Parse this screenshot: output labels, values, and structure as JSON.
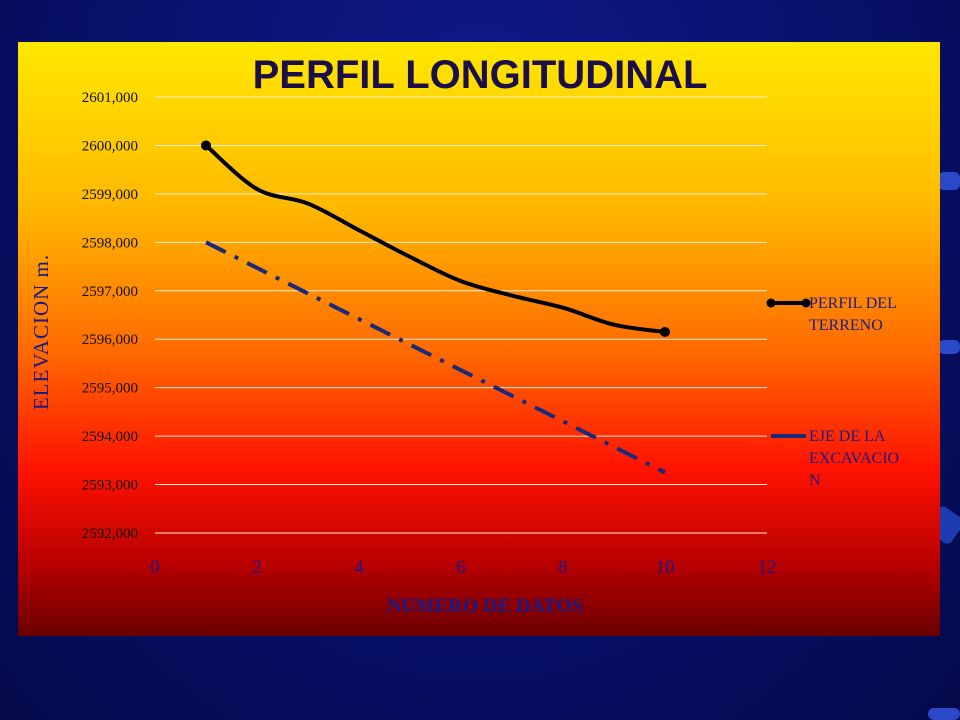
{
  "chart_data": {
    "type": "line",
    "title": "PERFIL LONGITUDINAL",
    "xlabel": "NUMERO DE DATOS",
    "ylabel": "ELEVACION m.",
    "xlim": [
      0,
      12
    ],
    "ylim": [
      2592,
      2601
    ],
    "x_ticks": [
      "0",
      "2",
      "4",
      "6",
      "8",
      "10",
      "12"
    ],
    "y_ticks": [
      "2592,000",
      "2593,000",
      "2594,000",
      "2595,000",
      "2596,000",
      "2597,000",
      "2598,000",
      "2599,000",
      "2600,000",
      "2601,000"
    ],
    "grid": true,
    "legend_position": "right",
    "series": [
      {
        "name": "PERFIL DEL TERRENO",
        "name_lines": [
          "PERFIL DEL",
          "TERRENO"
        ],
        "color": "#000000",
        "style": "solid-with-end-markers",
        "x": [
          1,
          2,
          3,
          4,
          5,
          6,
          7,
          8,
          9,
          10
        ],
        "y": [
          2600.0,
          2599.1,
          2598.8,
          2598.25,
          2597.7,
          2597.2,
          2596.9,
          2596.65,
          2596.3,
          2596.15
        ]
      },
      {
        "name": "EJE DE LA EXCAVACION",
        "name_lines": [
          "EJE DE LA",
          "EXCAVACIO",
          "N"
        ],
        "color": "#1a2a7a",
        "style": "dash-dot",
        "x": [
          1,
          10
        ],
        "y": [
          2598.0,
          2593.25
        ]
      }
    ]
  }
}
